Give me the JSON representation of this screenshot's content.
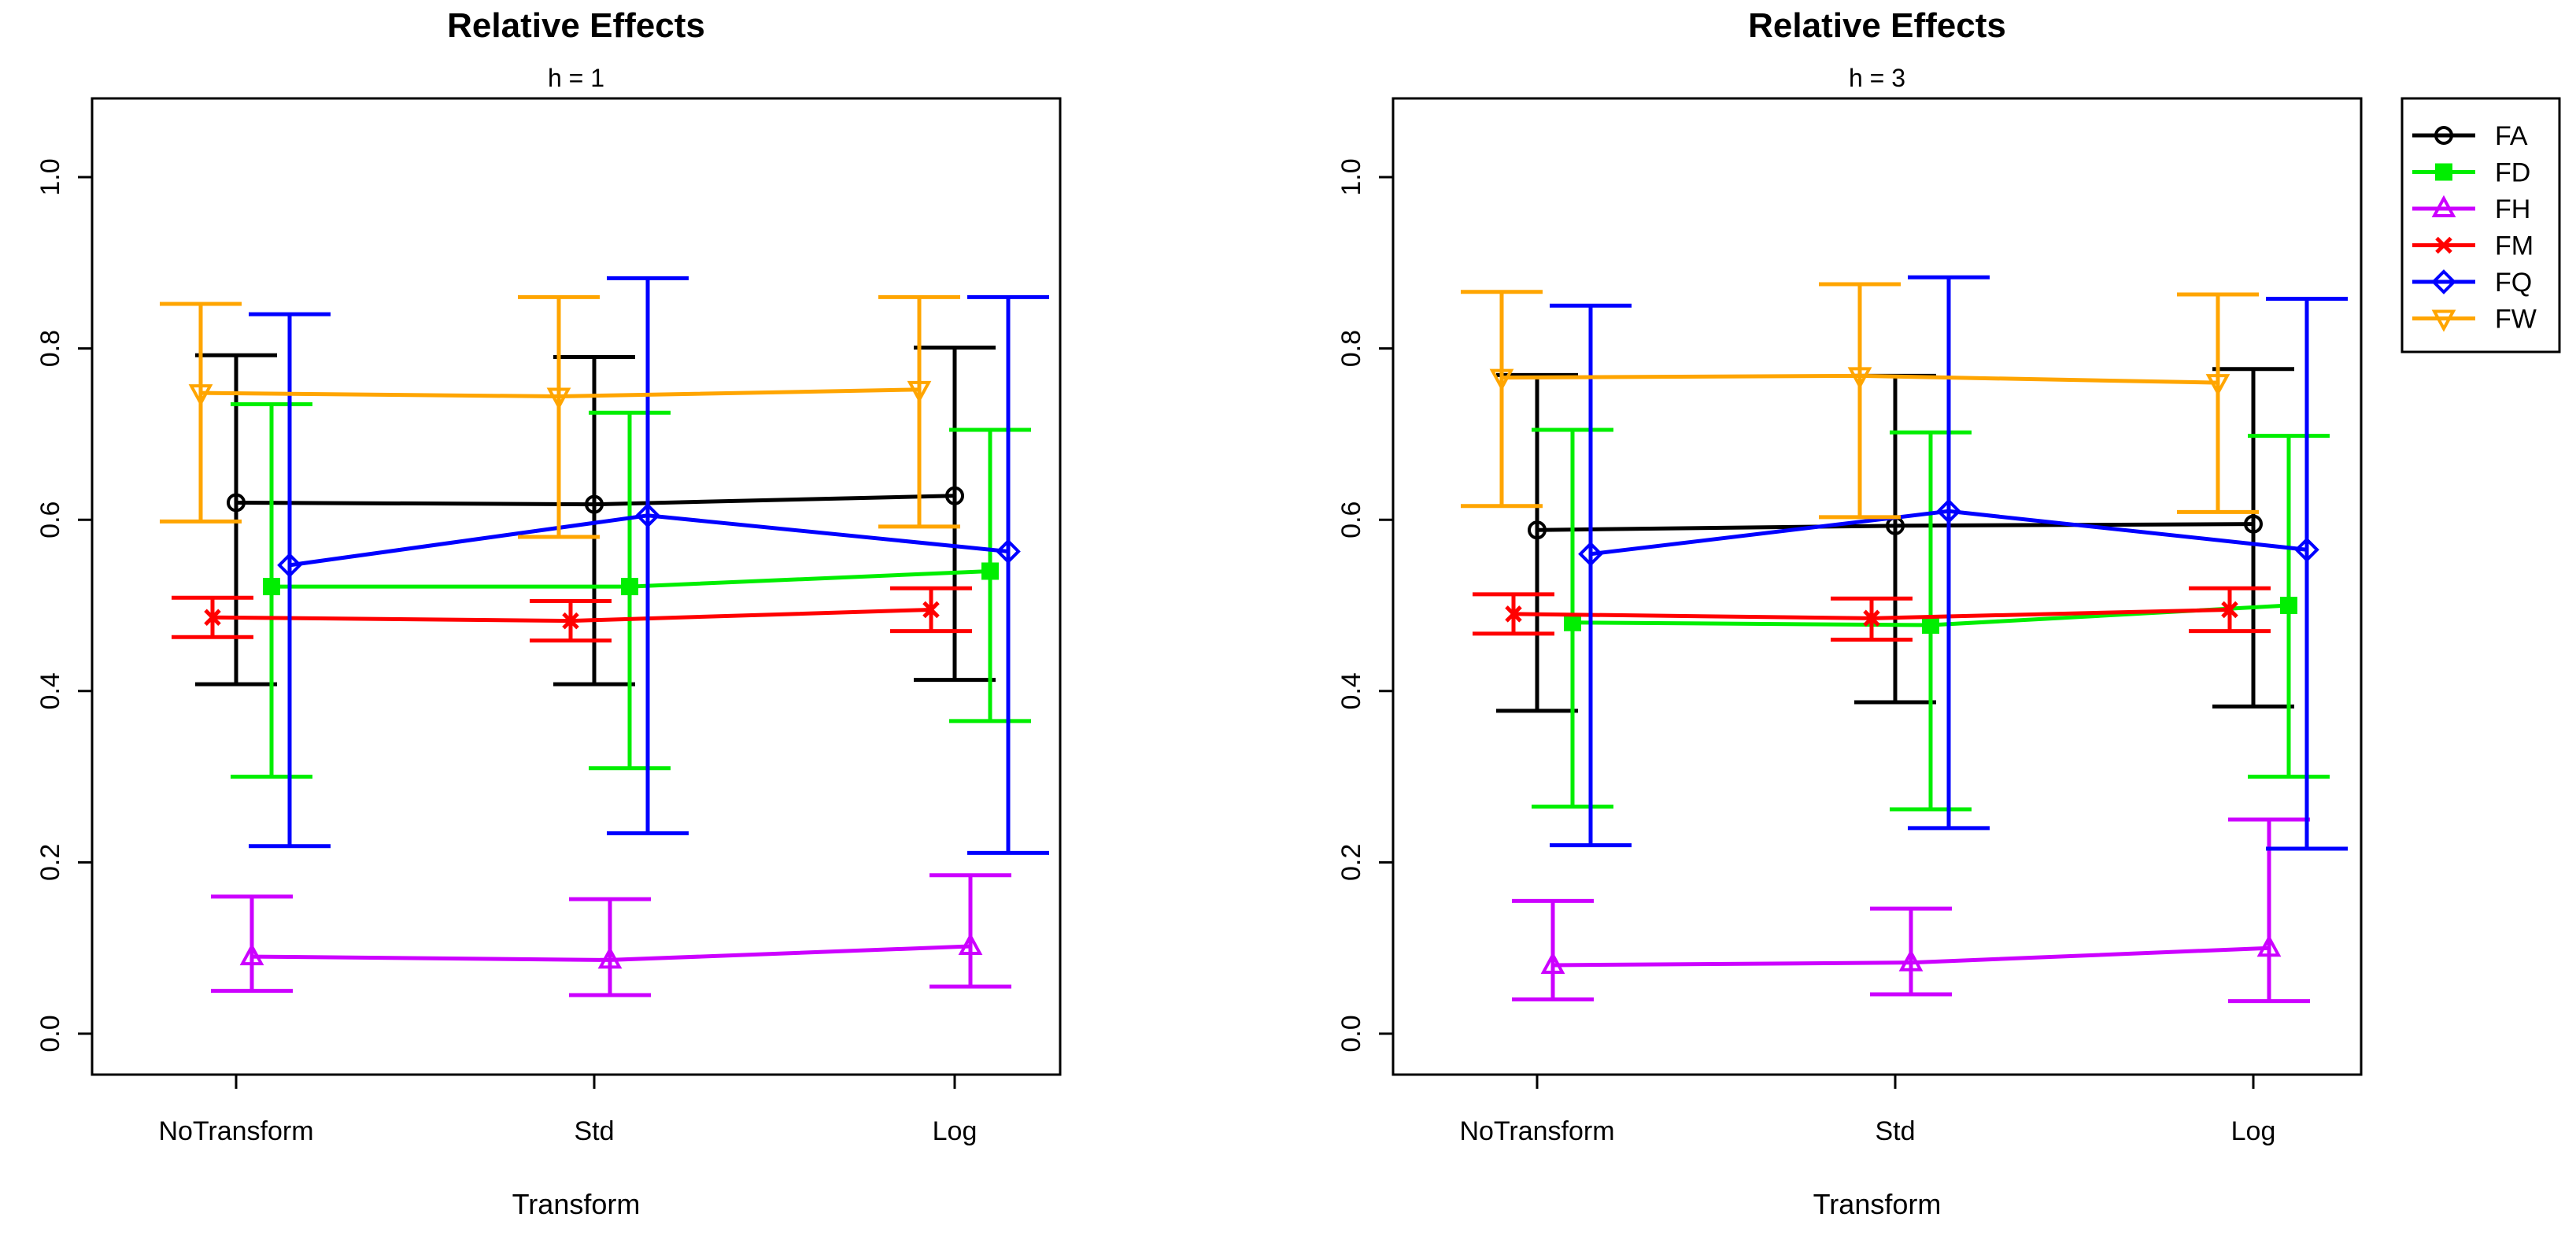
{
  "chart_data": [
    {
      "type": "line",
      "title": "Relative Effects",
      "subtitle": "h = 1",
      "xlabel": "Transform",
      "ylabel": "",
      "categories": [
        "NoTransform",
        "Std",
        "Log"
      ],
      "yticks": [
        "0.0",
        "0.2",
        "0.4",
        "0.6",
        "0.8",
        "1.0"
      ],
      "ylim": [
        -0.05,
        1.09
      ],
      "series": [
        {
          "name": "FA",
          "values": [
            0.62,
            0.618,
            0.628
          ],
          "lower": [
            0.408,
            0.408,
            0.413
          ],
          "upper": [
            0.792,
            0.79,
            0.801
          ]
        },
        {
          "name": "FD",
          "values": [
            0.522,
            0.522,
            0.54
          ],
          "lower": [
            0.3,
            0.31,
            0.365
          ],
          "upper": [
            0.735,
            0.725,
            0.705
          ]
        },
        {
          "name": "FH",
          "values": [
            0.09,
            0.086,
            0.102
          ],
          "lower": [
            0.05,
            0.045,
            0.055
          ],
          "upper": [
            0.16,
            0.157,
            0.185
          ]
        },
        {
          "name": "FM",
          "values": [
            0.486,
            0.482,
            0.495
          ],
          "lower": [
            0.463,
            0.459,
            0.47
          ],
          "upper": [
            0.509,
            0.505,
            0.52
          ]
        },
        {
          "name": "FQ",
          "values": [
            0.547,
            0.605,
            0.563
          ],
          "lower": [
            0.219,
            0.234,
            0.211
          ],
          "upper": [
            0.84,
            0.882,
            0.86
          ]
        },
        {
          "name": "FW",
          "values": [
            0.748,
            0.744,
            0.752
          ],
          "lower": [
            0.598,
            0.58,
            0.592
          ],
          "upper": [
            0.852,
            0.86,
            0.86
          ]
        }
      ]
    },
    {
      "type": "line",
      "title": "Relative Effects",
      "subtitle": "h = 3",
      "xlabel": "Transform",
      "ylabel": "",
      "categories": [
        "NoTransform",
        "Std",
        "Log"
      ],
      "yticks": [
        "0.0",
        "0.2",
        "0.4",
        "0.6",
        "0.8",
        "1.0"
      ],
      "ylim": [
        -0.05,
        1.09
      ],
      "series": [
        {
          "name": "FA",
          "values": [
            0.588,
            0.593,
            0.595
          ],
          "lower": [
            0.377,
            0.387,
            0.382
          ],
          "upper": [
            0.769,
            0.768,
            0.776
          ]
        },
        {
          "name": "FD",
          "values": [
            0.48,
            0.477,
            0.5
          ],
          "lower": [
            0.265,
            0.262,
            0.3
          ],
          "upper": [
            0.705,
            0.702,
            0.698
          ]
        },
        {
          "name": "FH",
          "values": [
            0.08,
            0.083,
            0.1
          ],
          "lower": [
            0.04,
            0.046,
            0.038
          ],
          "upper": [
            0.155,
            0.146,
            0.25
          ]
        },
        {
          "name": "FM",
          "values": [
            0.49,
            0.485,
            0.495
          ],
          "lower": [
            0.467,
            0.46,
            0.47
          ],
          "upper": [
            0.513,
            0.508,
            0.52
          ]
        },
        {
          "name": "FQ",
          "values": [
            0.56,
            0.61,
            0.565
          ],
          "lower": [
            0.22,
            0.24,
            0.216
          ],
          "upper": [
            0.85,
            0.883,
            0.858
          ]
        },
        {
          "name": "FW",
          "values": [
            0.766,
            0.768,
            0.76
          ],
          "lower": [
            0.616,
            0.603,
            0.609
          ],
          "upper": [
            0.866,
            0.875,
            0.863
          ]
        }
      ]
    }
  ],
  "legend": [
    {
      "name": "FA",
      "color": "#000000",
      "marker": "circle"
    },
    {
      "name": "FD",
      "color": "#00ee00",
      "marker": "square"
    },
    {
      "name": "FH",
      "color": "#cc00ff",
      "marker": "triangle-up"
    },
    {
      "name": "FM",
      "color": "#ff0000",
      "marker": "cross"
    },
    {
      "name": "FQ",
      "color": "#0000ff",
      "marker": "diamond"
    },
    {
      "name": "FW",
      "color": "#ffa500",
      "marker": "triangle-down"
    }
  ]
}
